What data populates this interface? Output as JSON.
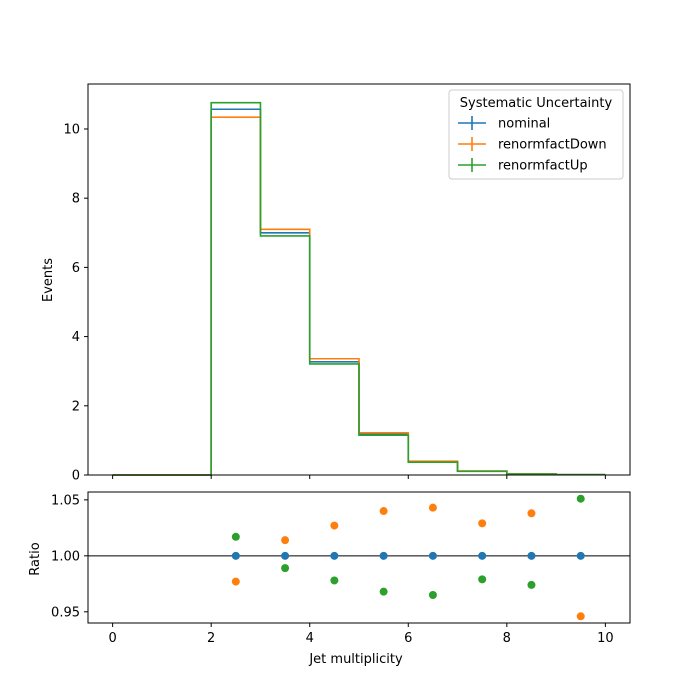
{
  "chart_data": [
    {
      "type": "step-histogram",
      "xlabel": "",
      "ylabel": "Events",
      "xlim": [
        -0.5,
        10.5
      ],
      "ylim": [
        0,
        11.3
      ],
      "bin_edges": [
        0,
        1,
        2,
        3,
        4,
        5,
        6,
        7,
        8,
        9,
        10
      ],
      "x_ticks": [
        0,
        2,
        4,
        6,
        8,
        10
      ],
      "y_ticks": [
        0,
        2,
        4,
        6,
        8,
        10
      ],
      "legend": {
        "title": "Systematic Uncertainty",
        "placement": "top-right"
      },
      "series": [
        {
          "name": "nominal",
          "color": "#1f77b4",
          "values": [
            0,
            0,
            10.57,
            7.0,
            3.27,
            1.18,
            0.38,
            0.11,
            0.03,
            0.01
          ]
        },
        {
          "name": "renormfactDown",
          "color": "#ff7f0e",
          "values": [
            0,
            0,
            10.34,
            7.1,
            3.36,
            1.22,
            0.4,
            0.115,
            0.031,
            0.01
          ]
        },
        {
          "name": "renormfactUp",
          "color": "#2ca02c",
          "values": [
            0,
            0,
            10.76,
            6.91,
            3.21,
            1.15,
            0.37,
            0.108,
            0.029,
            0.01
          ]
        }
      ]
    },
    {
      "type": "scatter",
      "xlabel": "Jet multiplicity",
      "ylabel": "Ratio",
      "xlim": [
        -0.5,
        10.5
      ],
      "ylim": [
        0.94,
        1.057
      ],
      "x_ticks": [
        0,
        2,
        4,
        6,
        8,
        10
      ],
      "y_ticks": [
        0.95,
        1.0,
        1.05
      ],
      "y_tick_labels": [
        "0.95",
        "1.00",
        "1.05"
      ],
      "reference_line": 1.0,
      "x": [
        2.5,
        3.5,
        4.5,
        5.5,
        6.5,
        7.5,
        8.5,
        9.5
      ],
      "series": [
        {
          "name": "nominal",
          "color": "#1f77b4",
          "values": [
            1.0,
            1.0,
            1.0,
            1.0,
            1.0,
            1.0,
            1.0,
            1.0
          ]
        },
        {
          "name": "renormfactDown",
          "color": "#ff7f0e",
          "values": [
            0.977,
            1.014,
            1.027,
            1.04,
            1.043,
            1.029,
            1.038,
            0.946
          ]
        },
        {
          "name": "renormfactUp",
          "color": "#2ca02c",
          "values": [
            1.017,
            0.989,
            0.978,
            0.968,
            0.965,
            0.979,
            0.974,
            1.051
          ]
        }
      ]
    }
  ]
}
